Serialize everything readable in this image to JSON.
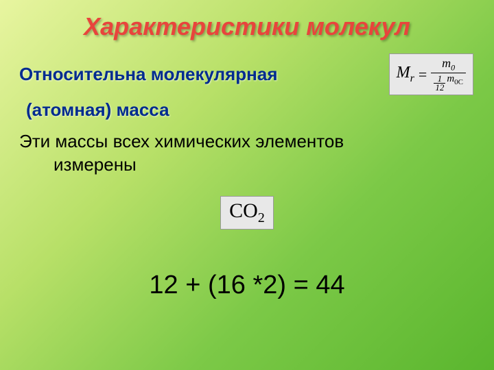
{
  "title": "Характеристики молекул",
  "subtitle_line1": "Относительна молекулярная",
  "subtitle_line2": "(атомная)  масса",
  "formula": {
    "lhs_base": "M",
    "lhs_sub": "r",
    "eq": "=",
    "num_base": "m",
    "num_sub": "0",
    "den_frac_num": "1",
    "den_frac_den": "12",
    "den_base": "m",
    "den_sub": "0C"
  },
  "body_line1": "Эти массы всех химических элементов",
  "body_line2": "измерены",
  "molecule": {
    "text": "CO",
    "sub": "2"
  },
  "equation": "12 + (16 *2) = 44",
  "colors": {
    "title_color": "#e8453c",
    "subtitle_color": "#002b8f",
    "body_color": "#000000",
    "box_bg": "#e8e8e8"
  },
  "fonts": {
    "title_size": 36,
    "subtitle_size": 26,
    "body_size": 26,
    "equation_size": 38
  }
}
